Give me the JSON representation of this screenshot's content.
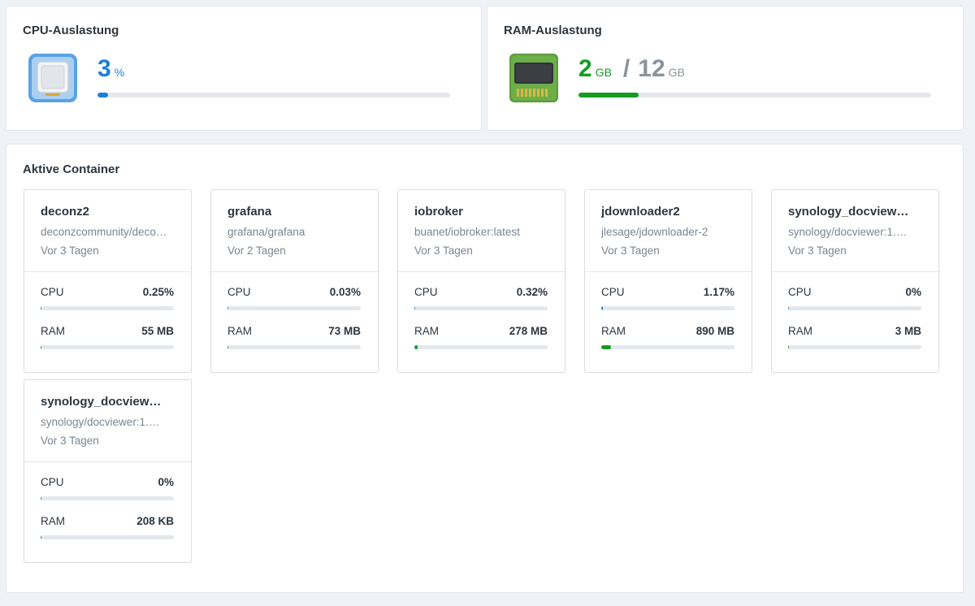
{
  "cpu": {
    "title": "CPU-Auslastung",
    "value": "3",
    "unit": "%",
    "usage_fraction": 0.03,
    "icon": "cpu-chip-icon",
    "color": "#1a7fd8"
  },
  "ram": {
    "title": "RAM-Auslastung",
    "used": "2",
    "used_unit": "GB",
    "separator": "/",
    "total": "12",
    "total_unit": "GB",
    "usage_fraction": 0.17,
    "icon": "ram-module-icon",
    "color": "#149c22"
  },
  "containers": {
    "title": "Aktive Container",
    "cpu_label": "CPU",
    "ram_label": "RAM",
    "items": [
      {
        "name": "deconz2",
        "image": "deconzcommunity/deco…",
        "uptime": "Vor 3 Tagen",
        "cpu": "0.25%",
        "cpu_fraction": 0.0025,
        "ram": "55 MB",
        "ram_fraction": 0.0045
      },
      {
        "name": "grafana",
        "image": "grafana/grafana",
        "uptime": "Vor 2 Tagen",
        "cpu": "0.03%",
        "cpu_fraction": 0.0003,
        "ram": "73 MB",
        "ram_fraction": 0.006
      },
      {
        "name": "iobroker",
        "image": "buanet/iobroker:latest",
        "uptime": "Vor 3 Tagen",
        "cpu": "0.32%",
        "cpu_fraction": 0.0032,
        "ram": "278 MB",
        "ram_fraction": 0.023
      },
      {
        "name": "jdownloader2",
        "image": "jlesage/jdownloader-2",
        "uptime": "Vor 3 Tagen",
        "cpu": "1.17%",
        "cpu_fraction": 0.0117,
        "ram": "890 MB",
        "ram_fraction": 0.073
      },
      {
        "name": "synology_docview…",
        "image": "synology/docviewer:1.…",
        "uptime": "Vor 3 Tagen",
        "cpu": "0%",
        "cpu_fraction": 0,
        "ram": "3 MB",
        "ram_fraction": 0
      },
      {
        "name": "synology_docview…",
        "image": "synology/docviewer:1.…",
        "uptime": "Vor 3 Tagen",
        "cpu": "0%",
        "cpu_fraction": 0,
        "ram": "208 KB",
        "ram_fraction": 0
      }
    ]
  }
}
